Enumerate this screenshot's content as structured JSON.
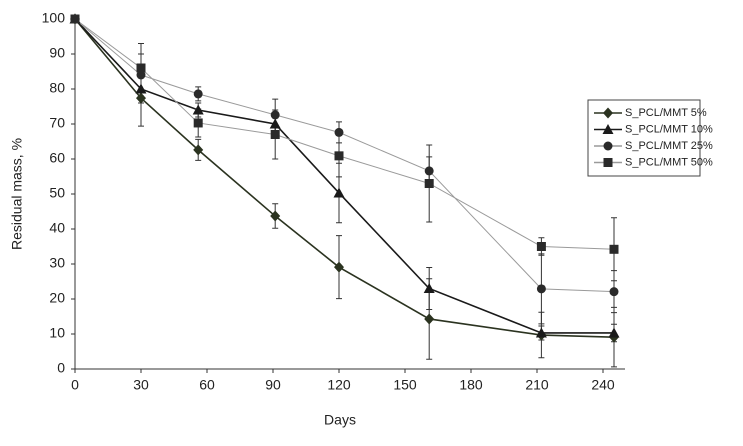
{
  "chart_data": {
    "type": "line",
    "xlabel": "Days",
    "ylabel": "Residual mass, %",
    "x": [
      0,
      30,
      56,
      91,
      120,
      161,
      212,
      245
    ],
    "xlim": [
      0,
      250
    ],
    "xticks": [
      0,
      30,
      60,
      90,
      120,
      150,
      180,
      210,
      240
    ],
    "ylim": [
      0,
      100
    ],
    "yticks": [
      0,
      10,
      20,
      30,
      40,
      50,
      60,
      70,
      80,
      90,
      100
    ],
    "legend": "right",
    "series": [
      {
        "name": "S_PCL/MMT 5%",
        "marker": "diamond",
        "color": "#2b3320",
        "line_color": "#2b3320",
        "values": [
          100,
          77.4,
          62.6,
          43.7,
          29.1,
          14.3,
          9.7,
          9.1
        ],
        "errors": [
          0,
          8,
          3,
          3.5,
          9,
          11.5,
          6.5,
          8.5
        ]
      },
      {
        "name": "S_PCL/MMT 10%",
        "marker": "triangle",
        "color": "#1a1a1a",
        "line_color": "#1a1a1a",
        "values": [
          100,
          80,
          74,
          70,
          50.3,
          23,
          10.3,
          10.3
        ],
        "errors": [
          0,
          4,
          2,
          2,
          8.5,
          6,
          2,
          2.5
        ]
      },
      {
        "name": "S_PCL/MMT 25%",
        "marker": "circle",
        "color": "#2a2a2a",
        "line_color": "#9a9a9a",
        "values": [
          100,
          84,
          78.6,
          72.6,
          67.6,
          56.6,
          22.9,
          22.1
        ],
        "errors": [
          0,
          6,
          2,
          4.5,
          3,
          4,
          10,
          6
        ]
      },
      {
        "name": "S_PCL/MMT 50%",
        "marker": "square",
        "color": "#2a2a2a",
        "line_color": "#9a9a9a",
        "values": [
          100,
          86,
          70.3,
          67,
          60.9,
          53,
          35,
          34.2
        ],
        "errors": [
          0,
          7,
          4,
          7,
          6,
          11,
          2.5,
          9
        ]
      }
    ]
  }
}
